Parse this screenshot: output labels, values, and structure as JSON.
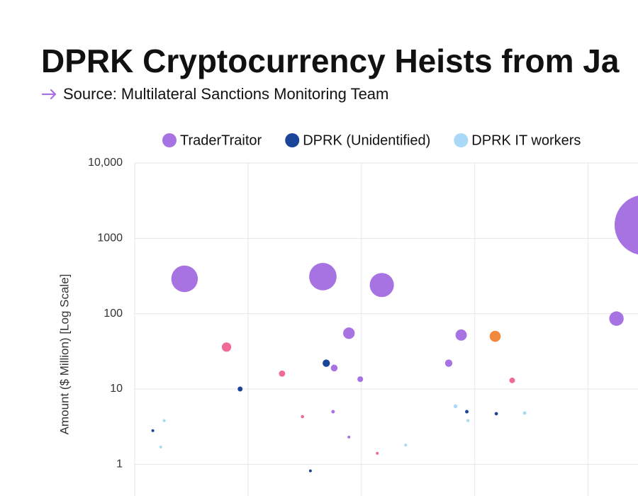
{
  "chart_data": {
    "type": "scatter",
    "title": "DPRK Cryptocurrency Heists from Ja",
    "subtitle": "Source: Multilateral Sanctions Monitoring Team",
    "y_label": "Amount ($ Million) [Log Scale]",
    "yscale": "log",
    "grid": true,
    "legend": "top",
    "xlim": [
      0,
      4.44
    ],
    "xticks": [
      0,
      1,
      2,
      3,
      4
    ],
    "ylim": [
      0.38,
      10000
    ],
    "yticks": [
      {
        "value": 10000,
        "label": "10,000"
      },
      1000,
      100,
      10,
      1
    ],
    "series": [
      {
        "name": "TraderTraitor",
        "color": "#a772e2",
        "x": [
          0.44,
          1.66,
          2.18,
          1.89,
          1.76,
          1.99,
          1.75,
          1.89,
          2.88,
          2.77,
          4.25,
          4.5
        ],
        "values": [
          290,
          310,
          240,
          55,
          19,
          13.5,
          5,
          2.3,
          52,
          22,
          86,
          1500
        ]
      },
      {
        "name": "DPRK (Unidentified)",
        "color": "#1b4598",
        "x": [
          0.16,
          0.93,
          1.69,
          1.55,
          2.93,
          3.19
        ],
        "values": [
          2.8,
          10,
          22,
          0.82,
          5,
          4.7
        ]
      },
      {
        "name": "DPRK IT workers",
        "color": "#a9d9f6",
        "x": [
          0.26,
          0.23,
          2.39,
          2.83,
          2.94,
          3.44
        ],
        "values": [
          3.8,
          1.7,
          1.8,
          5.9,
          3.8,
          4.8
        ]
      },
      {
        "color": "#ef6a94",
        "x": [
          0.81,
          1.3,
          1.48,
          2.14,
          3.33
        ],
        "values": [
          36,
          16,
          4.3,
          1.4,
          13
        ]
      },
      {
        "color": "#f0883e",
        "x": [
          3.18
        ],
        "values": [
          50
        ]
      }
    ]
  }
}
